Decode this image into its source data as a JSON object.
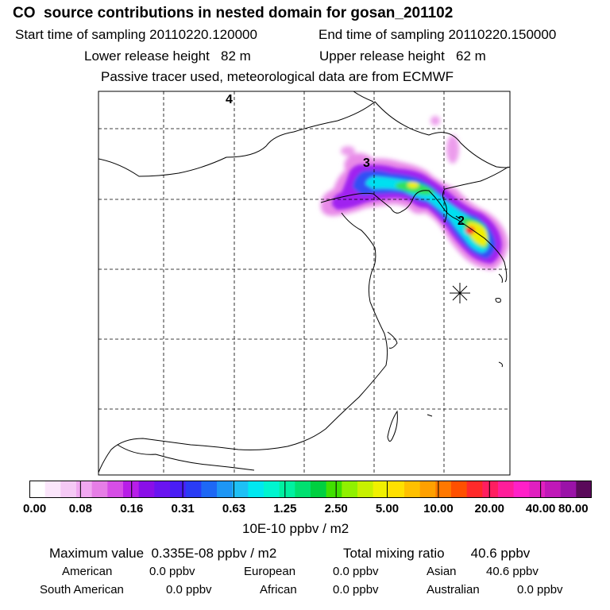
{
  "header": {
    "title": "CO  source contributions in nested domain for gosan_201102",
    "start_label": "Start time of sampling 20110220.120000",
    "end_label": "End time of sampling 20110220.150000",
    "lower_label": "Lower release height   82 m",
    "upper_label": "Upper release height   62 m",
    "tracer_line": "Passive tracer used, meteorological data are from ECMWF"
  },
  "map": {
    "point_labels": [
      "4",
      "3",
      "2"
    ],
    "receptor_icon": "asterisk-star-icon"
  },
  "colorbar": {
    "colors": [
      "#ffffff",
      "#fbe6fb",
      "#f5c9f5",
      "#f0a8f0",
      "#e67ee6",
      "#d64ee6",
      "#b81ee8",
      "#8a0fe8",
      "#6a14f0",
      "#4a1ef5",
      "#2a3cf5",
      "#1e68f5",
      "#1e96f5",
      "#1ec0f5",
      "#00e8f0",
      "#00f5d0",
      "#00f0a0",
      "#00e070",
      "#00d040",
      "#40e000",
      "#90f000",
      "#c8f000",
      "#f0f000",
      "#ffe000",
      "#ffc000",
      "#ffa000",
      "#ff7800",
      "#ff5000",
      "#ff2a2a",
      "#ff1e60",
      "#ff1e9a",
      "#ff20c8",
      "#e020c0",
      "#c018b8",
      "#9a12a8",
      "#5a0a5a"
    ],
    "tick_labels": [
      "0.00",
      "0.08",
      "0.16",
      "0.31",
      "0.63",
      "1.25",
      "2.50",
      "5.00",
      "10.00",
      "20.00",
      "40.00",
      "80.00"
    ],
    "unit_label": "10E-10 ppbv / m2"
  },
  "footer": {
    "max_value": "Maximum value  0.335E-08 ppbv / m2",
    "total_mixing": "Total mixing ratio       40.6 ppbv",
    "american_label": "American",
    "american_value": "0.0 ppbv",
    "european_label": "European",
    "european_value": "0.0 ppbv",
    "asian_label": "Asian",
    "asian_value": "40.6 ppbv",
    "south_american_label": "South American",
    "south_american_value": "0.0 ppbv",
    "african_label": "African",
    "african_value": "0.0 ppbv",
    "australian_label": "Australian",
    "australian_value": "0.0 ppbv"
  }
}
